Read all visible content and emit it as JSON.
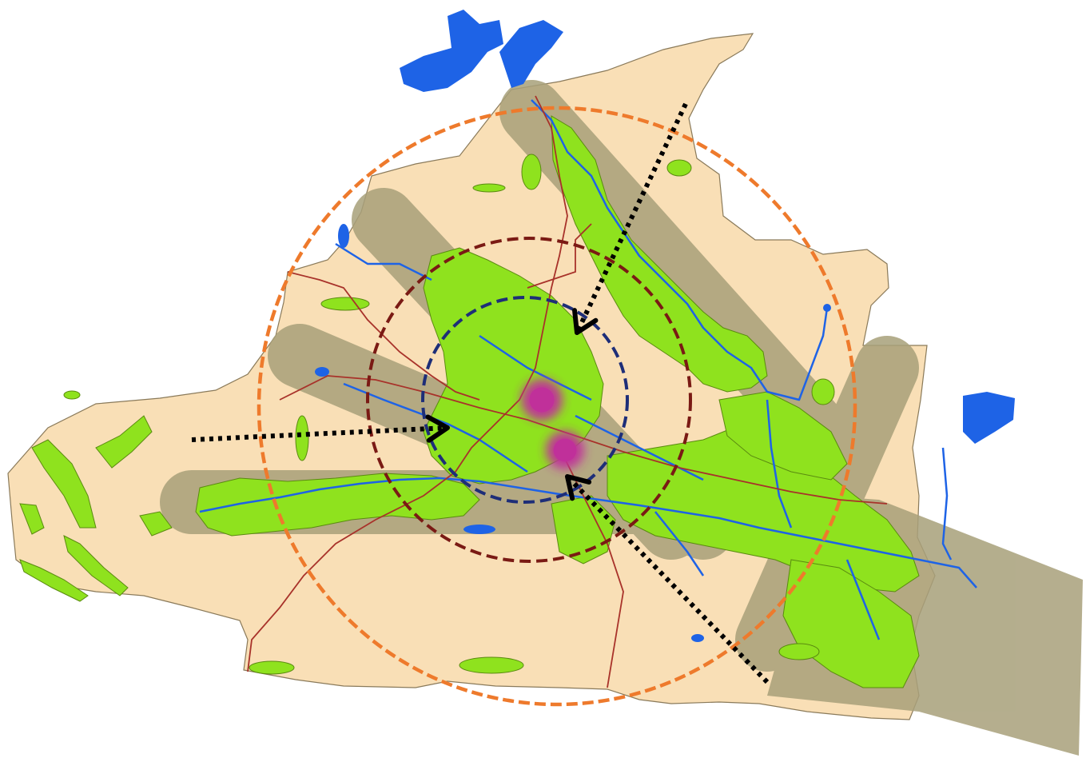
{
  "map": {
    "colors": {
      "background": "#ffffff",
      "land": "#f9dfb6",
      "land_outline": "#8a7a5a",
      "corridor": "#a8a07a",
      "green_space": "#8fe21e",
      "green_outline": "#5a8a10",
      "water": "#1e63e6",
      "road": "#a8322a",
      "ring_outer": "#ee7a2c",
      "ring_middle": "#7a1a14",
      "ring_inner": "#1e2e78",
      "center": "#c0309a",
      "arrow": "#000000"
    },
    "rings": [
      {
        "id": "outer",
        "style": "dashed"
      },
      {
        "id": "middle",
        "style": "dashed"
      },
      {
        "id": "inner",
        "style": "dashed"
      }
    ],
    "centers": [
      {
        "id": "north"
      },
      {
        "id": "south"
      }
    ],
    "arrows": [
      {
        "id": "from-north-east",
        "style": "dotted"
      },
      {
        "id": "from-west",
        "style": "dotted"
      },
      {
        "id": "from-south-east",
        "style": "dotted"
      }
    ],
    "icons": {
      "arrowhead": "chevron-arrowhead-icon"
    }
  }
}
